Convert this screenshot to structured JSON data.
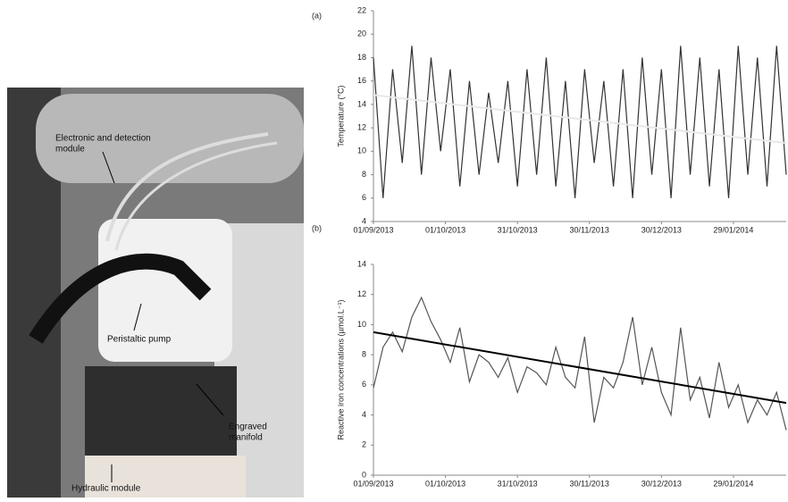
{
  "photo": {
    "labels": [
      [
        "Electronic and detection",
        "module"
      ],
      [
        "Peristaltic pump"
      ],
      [
        "Engraved",
        "manifold"
      ],
      [
        "Hydraulic module"
      ]
    ]
  },
  "chart_data": [
    {
      "type": "line",
      "panel": "(a)",
      "y_label": "Temperature (°C)",
      "x": [
        "2013-09-01",
        "2013-09-05",
        "2013-09-09",
        "2013-09-13",
        "2013-09-17",
        "2013-09-21",
        "2013-09-25",
        "2013-09-29",
        "2013-10-03",
        "2013-10-07",
        "2013-10-11",
        "2013-10-15",
        "2013-10-19",
        "2013-10-23",
        "2013-10-27",
        "2013-10-31",
        "2013-11-04",
        "2013-11-08",
        "2013-11-12",
        "2013-11-16",
        "2013-11-20",
        "2013-11-24",
        "2013-11-28",
        "2013-12-02",
        "2013-12-06",
        "2013-12-10",
        "2013-12-14",
        "2013-12-18",
        "2013-12-22",
        "2013-12-26",
        "2013-12-30",
        "2014-01-03",
        "2014-01-07",
        "2014-01-11",
        "2014-01-15",
        "2014-01-19",
        "2014-01-23",
        "2014-01-27",
        "2014-01-31",
        "2014-02-04",
        "2014-02-08",
        "2014-02-12",
        "2014-02-16",
        "2014-02-20"
      ],
      "values": [
        18,
        6,
        17,
        9,
        19,
        8,
        18,
        10,
        17,
        7,
        16,
        8,
        15,
        9,
        16,
        7,
        17,
        8,
        18,
        7,
        16,
        6,
        17,
        9,
        16,
        7,
        17,
        6,
        18,
        8,
        17,
        6,
        19,
        8,
        18,
        7,
        17,
        6,
        19,
        8,
        18,
        7,
        19,
        8
      ],
      "color": "#333333",
      "trendline": {
        "x": [
          "2013-09-01",
          "2014-02-20"
        ],
        "values": [
          14.8,
          10.7
        ],
        "color": "#e8e8e8"
      },
      "xlim": [
        "2013-09-01",
        "2014-02-20"
      ],
      "xticks": [
        {
          "value": "2013-09-01",
          "label": "01/09/2013"
        },
        {
          "value": "2013-10-01",
          "label": "01/10/2013"
        },
        {
          "value": "2013-10-31",
          "label": "31/10/2013"
        },
        {
          "value": "2013-11-30",
          "label": "30/11/2013"
        },
        {
          "value": "2013-12-30",
          "label": "30/12/2013"
        },
        {
          "value": "2014-01-29",
          "label": "29/01/2014"
        }
      ],
      "ylim": [
        4,
        22
      ],
      "yticks": [
        4,
        6,
        8,
        10,
        12,
        14,
        16,
        18,
        20,
        22
      ]
    },
    {
      "type": "line",
      "panel": "(b)",
      "y_label": "Reactive iron concentrations (µmol.L⁻¹)",
      "x": [
        "2013-09-01",
        "2013-09-05",
        "2013-09-09",
        "2013-09-13",
        "2013-09-17",
        "2013-09-21",
        "2013-09-25",
        "2013-09-29",
        "2013-10-03",
        "2013-10-07",
        "2013-10-11",
        "2013-10-15",
        "2013-10-19",
        "2013-10-23",
        "2013-10-27",
        "2013-10-31",
        "2013-11-04",
        "2013-11-08",
        "2013-11-12",
        "2013-11-16",
        "2013-11-20",
        "2013-11-24",
        "2013-11-28",
        "2013-12-02",
        "2013-12-06",
        "2013-12-10",
        "2013-12-14",
        "2013-12-18",
        "2013-12-22",
        "2013-12-26",
        "2013-12-30",
        "2014-01-03",
        "2014-01-07",
        "2014-01-11",
        "2014-01-15",
        "2014-01-19",
        "2014-01-23",
        "2014-01-27",
        "2014-01-31",
        "2014-02-04",
        "2014-02-08",
        "2014-02-12",
        "2014-02-16",
        "2014-02-20"
      ],
      "values": [
        5.8,
        8.5,
        9.5,
        8.2,
        10.5,
        11.8,
        10.2,
        9,
        7.5,
        9.8,
        6.2,
        8,
        7.5,
        6.5,
        7.8,
        5.5,
        7.2,
        6.8,
        6,
        8.5,
        6.5,
        5.8,
        9.2,
        3.5,
        6.5,
        5.8,
        7.5,
        10.5,
        6,
        8.5,
        5.5,
        4,
        9.8,
        5,
        6.5,
        3.8,
        7.5,
        4.5,
        6,
        3.5,
        5,
        4,
        5.5,
        3
      ],
      "color": "#555555",
      "trendline": {
        "x": [
          "2013-09-01",
          "2014-02-20"
        ],
        "values": [
          9.5,
          4.8
        ],
        "color": "#000000"
      },
      "xlim": [
        "2013-09-01",
        "2014-02-20"
      ],
      "xticks": [
        {
          "value": "2013-09-01",
          "label": "01/09/2013"
        },
        {
          "value": "2013-10-01",
          "label": "01/10/2013"
        },
        {
          "value": "2013-10-31",
          "label": "31/10/2013"
        },
        {
          "value": "2013-11-30",
          "label": "30/11/2013"
        },
        {
          "value": "2013-12-30",
          "label": "30/12/2013"
        },
        {
          "value": "2014-01-29",
          "label": "29/01/2014"
        }
      ],
      "ylim": [
        0,
        14
      ],
      "yticks": [
        0,
        2,
        4,
        6,
        8,
        10,
        12,
        14
      ]
    }
  ]
}
